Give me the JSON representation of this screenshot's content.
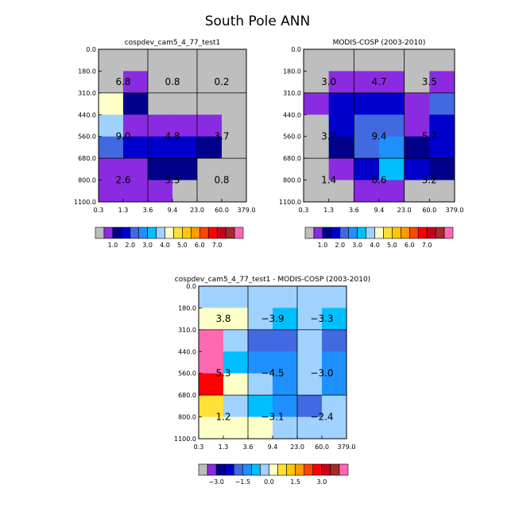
{
  "title": "South Pole ANN",
  "chart_data": [
    {
      "type": "heatmap",
      "title": "cospdev_cam5_4_77_test1",
      "x_ticks": [
        "0.3",
        "1.3",
        "3.6",
        "9.4",
        "23.0",
        "60.0",
        "379.0"
      ],
      "y_ticks": [
        "0.0",
        "180.0",
        "310.0",
        "440.0",
        "560.0",
        "680.0",
        "800.0",
        "1100.0"
      ],
      "cells": [
        [
          "#bebebe",
          "#bebebe",
          "#bebebe",
          "#bebebe",
          "#bebebe",
          "#bebebe"
        ],
        [
          "#bebebe",
          "#8a2be2",
          "#bebebe",
          "#bebebe",
          "#bebebe",
          "#bebebe"
        ],
        [
          "#ffffc8",
          "#00008b",
          "#bebebe",
          "#bebebe",
          "#bebebe",
          "#bebebe"
        ],
        [
          "#a0d2ff",
          "#8a2be2",
          "#8a2be2",
          "#8a2be2",
          "#8a2be2",
          "#bebebe"
        ],
        [
          "#4169e1",
          "#0000cd",
          "#0000cd",
          "#0000cd",
          "#00008b",
          "#bebebe"
        ],
        [
          "#8a2be2",
          "#8a2be2",
          "#00008b",
          "#00008b",
          "#bebebe",
          "#bebebe"
        ],
        [
          "#8a2be2",
          "#8a2be2",
          "#8a2be2",
          "#bebebe",
          "#bebebe",
          "#bebebe"
        ]
      ],
      "box_labels": [
        {
          "row": 0,
          "col": 0,
          "text": "6.8"
        },
        {
          "row": 0,
          "col": 1,
          "text": "0.8"
        },
        {
          "row": 0,
          "col": 2,
          "text": "0.2"
        },
        {
          "row": 1,
          "col": 0,
          "text": "9.0"
        },
        {
          "row": 1,
          "col": 1,
          "text": "4.8"
        },
        {
          "row": 1,
          "col": 2,
          "text": "3.7"
        },
        {
          "row": 2,
          "col": 0,
          "text": "2.6"
        },
        {
          "row": 2,
          "col": 1,
          "text": "3.5"
        },
        {
          "row": 2,
          "col": 2,
          "text": "0.8"
        }
      ],
      "colorbar": {
        "colors": [
          "#bebebe",
          "#8a2be2",
          "#00008b",
          "#0000cd",
          "#4169e1",
          "#1e90ff",
          "#00bfff",
          "#a0d2ff",
          "#ffffc8",
          "#ffe135",
          "#ffc800",
          "#ff9b00",
          "#ff4500",
          "#ff0000",
          "#c8001e",
          "#a52a2a",
          "#ff69b4"
        ],
        "labels": [
          {
            "pos": 2,
            "text": "1.0"
          },
          {
            "pos": 4,
            "text": "2.0"
          },
          {
            "pos": 6,
            "text": "3.0"
          },
          {
            "pos": 8,
            "text": "4.0"
          },
          {
            "pos": 10,
            "text": "5.0"
          },
          {
            "pos": 12,
            "text": "6.0"
          },
          {
            "pos": 14,
            "text": "7.0"
          }
        ]
      }
    },
    {
      "type": "heatmap",
      "title": "MODIS-COSP (2003-2010)",
      "x_ticks": [
        "0.3",
        "1.3",
        "3.6",
        "9.4",
        "23.0",
        "60.0",
        "379.0"
      ],
      "y_ticks": [
        "0.0",
        "180.0",
        "310.0",
        "440.0",
        "560.0",
        "680.0",
        "800.0",
        "1100.0"
      ],
      "cells": [
        [
          "#bebebe",
          "#bebebe",
          "#bebebe",
          "#bebebe",
          "#bebebe",
          "#bebebe"
        ],
        [
          "#bebebe",
          "#8a2be2",
          "#8a2be2",
          "#8a2be2",
          "#bebebe",
          "#8a2be2"
        ],
        [
          "#8a2be2",
          "#0000cd",
          "#0000cd",
          "#0000cd",
          "#8a2be2",
          "#4169e1"
        ],
        [
          "#bebebe",
          "#0000cd",
          "#4169e1",
          "#4169e1",
          "#8a2be2",
          "#0000cd"
        ],
        [
          "#bebebe",
          "#00008b",
          "#4169e1",
          "#1e90ff",
          "#00008b",
          "#0000cd"
        ],
        [
          "#bebebe",
          "#8a2be2",
          "#0000cd",
          "#00bfff",
          "#0000cd",
          "#00008b"
        ],
        [
          "#bebebe",
          "#bebebe",
          "#8a2be2",
          "#8a2be2",
          "#bebebe",
          "#bebebe"
        ]
      ],
      "box_labels": [
        {
          "row": 0,
          "col": 0,
          "text": "3.0"
        },
        {
          "row": 0,
          "col": 1,
          "text": "4.7"
        },
        {
          "row": 0,
          "col": 2,
          "text": "3.5"
        },
        {
          "row": 1,
          "col": 0,
          "text": "3.7"
        },
        {
          "row": 1,
          "col": 1,
          "text": "9.4"
        },
        {
          "row": 1,
          "col": 2,
          "text": "5.7"
        },
        {
          "row": 2,
          "col": 0,
          "text": "1.4"
        },
        {
          "row": 2,
          "col": 1,
          "text": "6.6"
        },
        {
          "row": 2,
          "col": 2,
          "text": "3.2"
        }
      ],
      "colorbar": {
        "colors": [
          "#bebebe",
          "#8a2be2",
          "#00008b",
          "#0000cd",
          "#4169e1",
          "#1e90ff",
          "#00bfff",
          "#a0d2ff",
          "#ffffc8",
          "#ffe135",
          "#ffc800",
          "#ff9b00",
          "#ff4500",
          "#ff0000",
          "#c8001e",
          "#a52a2a",
          "#ff69b4"
        ],
        "labels": [
          {
            "pos": 2,
            "text": "1.0"
          },
          {
            "pos": 4,
            "text": "2.0"
          },
          {
            "pos": 6,
            "text": "3.0"
          },
          {
            "pos": 8,
            "text": "4.0"
          },
          {
            "pos": 10,
            "text": "5.0"
          },
          {
            "pos": 12,
            "text": "6.0"
          },
          {
            "pos": 14,
            "text": "7.0"
          }
        ]
      }
    },
    {
      "type": "heatmap",
      "title": "cospdev_cam5_4_77_test1 - MODIS-COSP (2003-2010)",
      "x_ticks": [
        "0.3",
        "1.3",
        "3.6",
        "9.4",
        "23.0",
        "60.0",
        "379.0"
      ],
      "y_ticks": [
        "0.0",
        "180.0",
        "310.0",
        "440.0",
        "560.0",
        "680.0",
        "800.0",
        "1100.0"
      ],
      "cells": [
        [
          "#a0d2ff",
          "#a0d2ff",
          "#a0d2ff",
          "#a0d2ff",
          "#a0d2ff",
          "#a0d2ff"
        ],
        [
          "#ffffc8",
          "#ffffc8",
          "#a0d2ff",
          "#00bfff",
          "#a0d2ff",
          "#00bfff"
        ],
        [
          "#ff69b4",
          "#a0d2ff",
          "#4169e1",
          "#4169e1",
          "#a0d2ff",
          "#4169e1"
        ],
        [
          "#ff69b4",
          "#00bfff",
          "#1e90ff",
          "#1e90ff",
          "#a0d2ff",
          "#1e90ff"
        ],
        [
          "#ff0000",
          "#ffffc8",
          "#a0d2ff",
          "#1e90ff",
          "#a0d2ff",
          "#1e90ff"
        ],
        [
          "#ffe135",
          "#a0d2ff",
          "#00bfff",
          "#1e90ff",
          "#4169e1",
          "#a0d2ff"
        ],
        [
          "#ffffc8",
          "#ffffc8",
          "#ffffc8",
          "#a0d2ff",
          "#a0d2ff",
          "#a0d2ff"
        ]
      ],
      "box_labels": [
        {
          "row": 0,
          "col": 0,
          "text": "3.8"
        },
        {
          "row": 0,
          "col": 1,
          "text": "−3.9"
        },
        {
          "row": 0,
          "col": 2,
          "text": "−3.3"
        },
        {
          "row": 1,
          "col": 0,
          "text": "5.3"
        },
        {
          "row": 1,
          "col": 1,
          "text": "−4.5"
        },
        {
          "row": 1,
          "col": 2,
          "text": "−3.0"
        },
        {
          "row": 2,
          "col": 0,
          "text": "1.2"
        },
        {
          "row": 2,
          "col": 1,
          "text": "−3.1"
        },
        {
          "row": 2,
          "col": 2,
          "text": "−2.4"
        }
      ],
      "colorbar": {
        "colors": [
          "#bebebe",
          "#8a2be2",
          "#00008b",
          "#0000cd",
          "#4169e1",
          "#1e90ff",
          "#00bfff",
          "#a0d2ff",
          "#ffffc8",
          "#ffe135",
          "#ffc800",
          "#ff9b00",
          "#ff4500",
          "#ff0000",
          "#c8001e",
          "#a52a2a",
          "#ff69b4"
        ],
        "labels": [
          {
            "pos": 2,
            "text": "−3.0"
          },
          {
            "pos": 5,
            "text": "−1.5"
          },
          {
            "pos": 8,
            "text": "0.0"
          },
          {
            "pos": 11,
            "text": "1.5"
          },
          {
            "pos": 14,
            "text": "3.0"
          }
        ]
      }
    }
  ]
}
